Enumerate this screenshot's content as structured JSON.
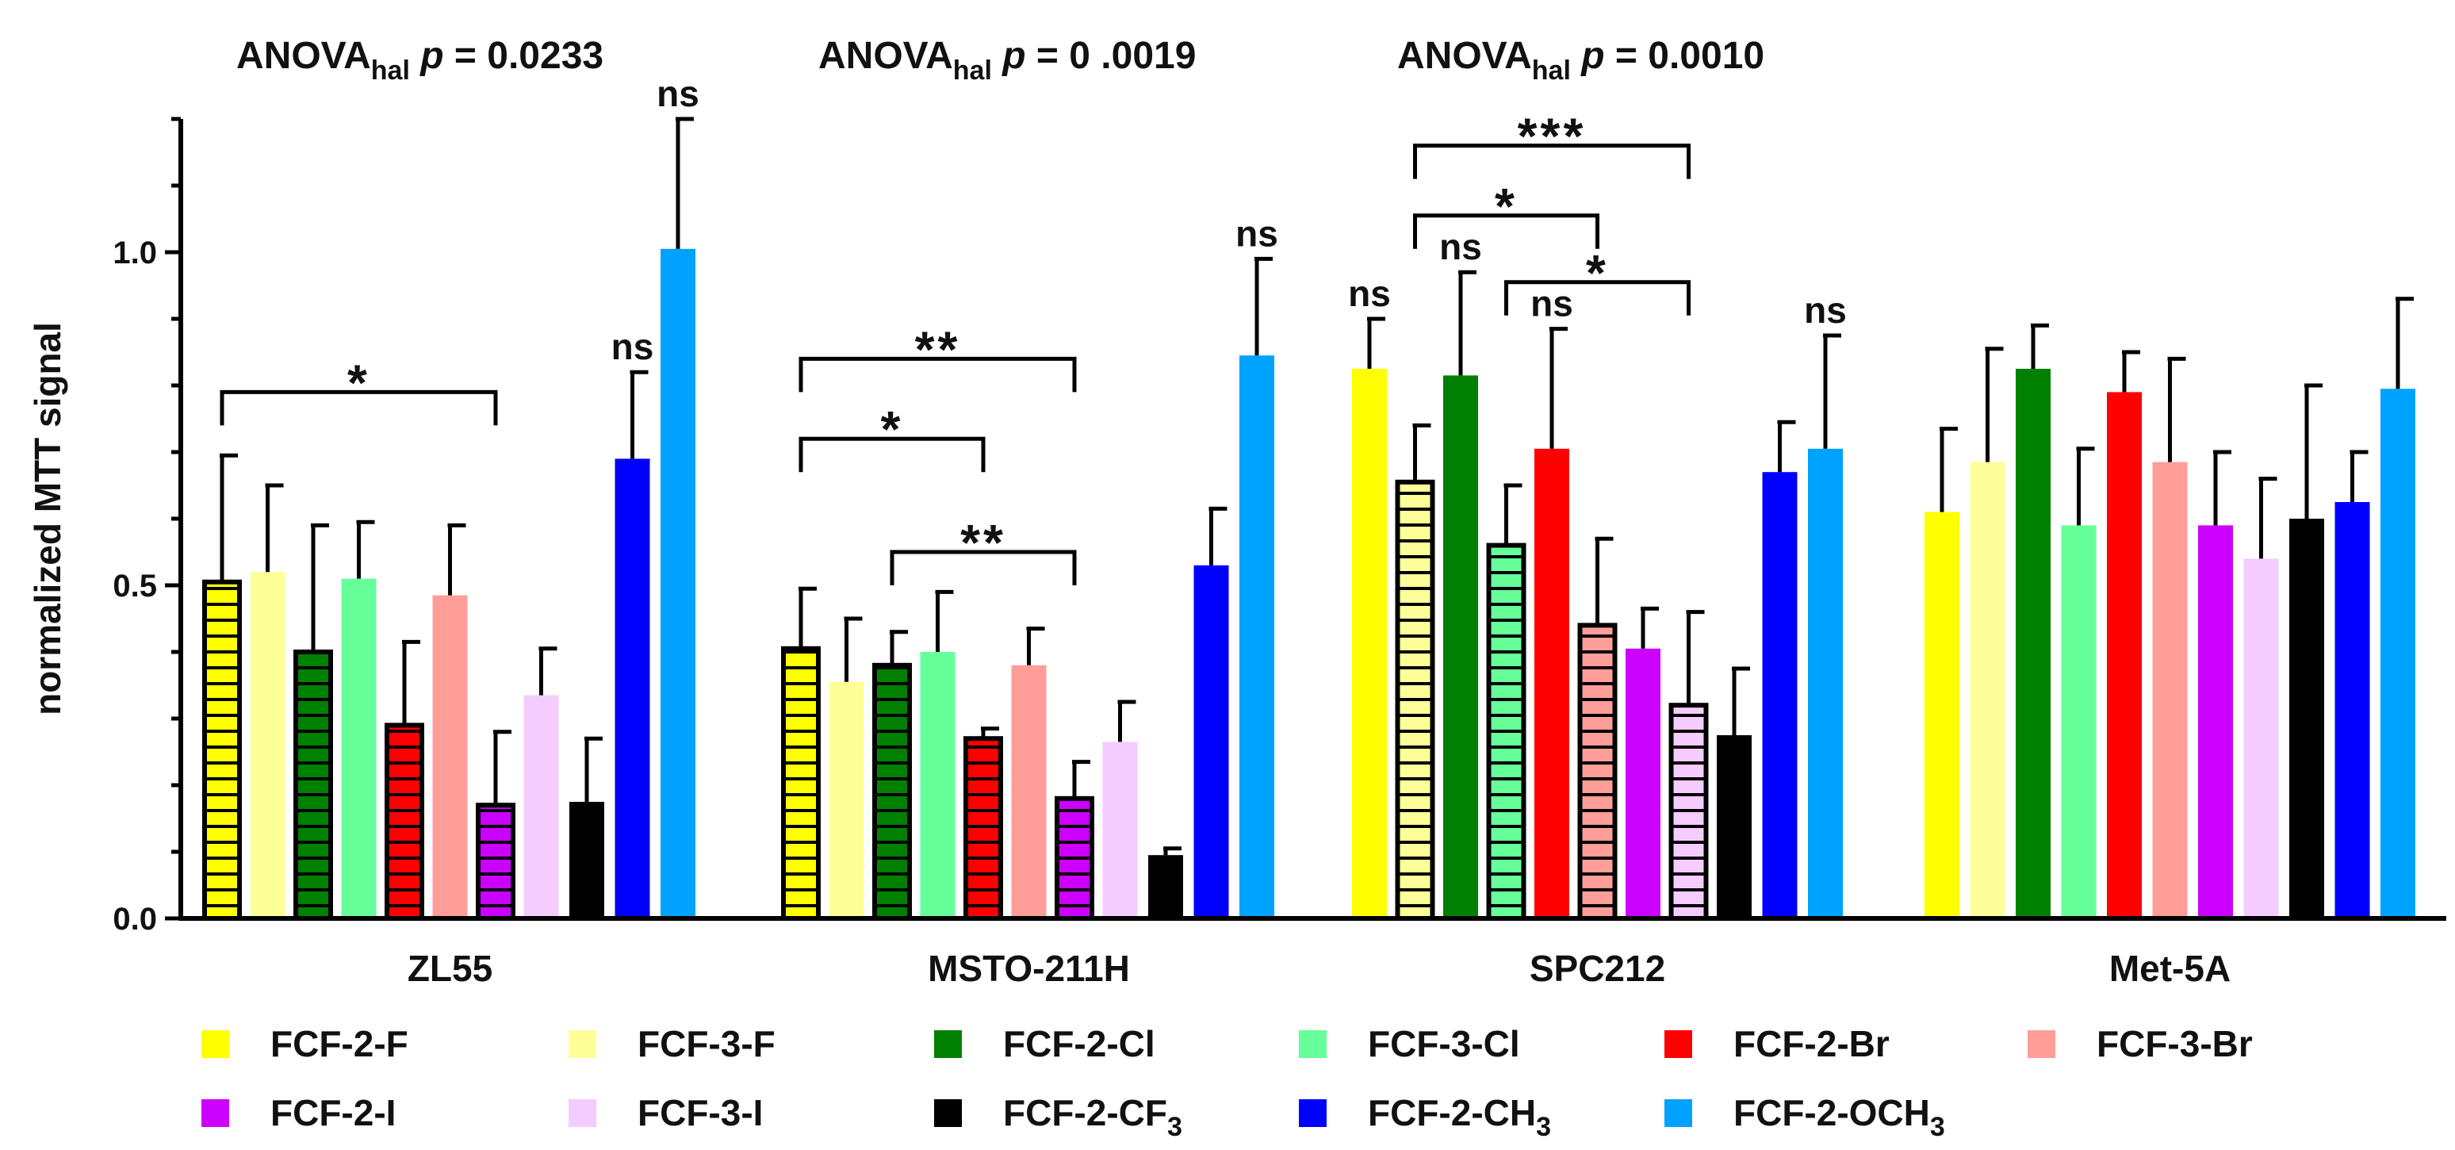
{
  "chart_data": {
    "type": "bar",
    "ylabel": "normalized MTT signal",
    "xlabel": "",
    "ylim": [
      0,
      1.2
    ],
    "yticks": [
      {
        "value": 0.0,
        "label": "0.0"
      },
      {
        "value": 0.5,
        "label": "0.5"
      },
      {
        "value": 1.0,
        "label": "1.0"
      }
    ],
    "grid": false,
    "legend_position": "bottom",
    "categories": [
      "ZL55",
      "MSTO-211H",
      "SPC212",
      "Met-5A"
    ],
    "series": [
      {
        "name": "FCF-2-F",
        "label": "FCF-2-F",
        "sub": "",
        "color": "#ffff00"
      },
      {
        "name": "FCF-3-F",
        "label": "FCF-3-F",
        "sub": "",
        "color": "#ffff99"
      },
      {
        "name": "FCF-2-Cl",
        "label": "FCF-2-Cl",
        "sub": "",
        "color": "#008000"
      },
      {
        "name": "FCF-3-Cl",
        "label": "FCF-3-Cl",
        "sub": "",
        "color": "#66ff99"
      },
      {
        "name": "FCF-2-Br",
        "label": "FCF-2-Br",
        "sub": "",
        "color": "#ff0000"
      },
      {
        "name": "FCF-3-Br",
        "label": "FCF-3-Br",
        "sub": "",
        "color": "#ff9e99"
      },
      {
        "name": "FCF-2-I",
        "label": "FCF-2-I",
        "sub": "",
        "color": "#cc00ff"
      },
      {
        "name": "FCF-3-I",
        "label": "FCF-3-I",
        "sub": "",
        "color": "#f5ccff"
      },
      {
        "name": "FCF-2-CF3",
        "label": "FCF-2-CF",
        "sub": "3",
        "color": "#000000"
      },
      {
        "name": "FCF-2-CH3",
        "label": "FCF-2-CH",
        "sub": "3",
        "color": "#0000ff"
      },
      {
        "name": "FCF-2-OCH3",
        "label": "FCF-2-OCH",
        "sub": "3",
        "color": "#00a2ff"
      }
    ],
    "groups": [
      {
        "name": "ZL55",
        "values": [
          0.505,
          0.52,
          0.4,
          0.51,
          0.29,
          0.485,
          0.17,
          0.335,
          0.175,
          0.69,
          1.005
        ],
        "errors": [
          0.19,
          0.13,
          0.19,
          0.085,
          0.125,
          0.105,
          0.11,
          0.07,
          0.095,
          0.13,
          0.195
        ],
        "hatched": [
          0,
          2,
          4,
          6
        ]
      },
      {
        "name": "MSTO-211H",
        "values": [
          0.405,
          0.355,
          0.38,
          0.4,
          0.27,
          0.38,
          0.18,
          0.265,
          0.095,
          0.53,
          0.845
        ],
        "errors": [
          0.09,
          0.095,
          0.05,
          0.09,
          0.015,
          0.055,
          0.055,
          0.06,
          0.01,
          0.085,
          0.145
        ],
        "hatched": [
          0,
          2,
          4,
          6
        ]
      },
      {
        "name": "SPC212",
        "values": [
          0.825,
          0.655,
          0.815,
          0.56,
          0.705,
          0.44,
          0.405,
          0.32,
          0.275,
          0.67,
          0.705
        ],
        "errors": [
          0.075,
          0.085,
          0.155,
          0.09,
          0.18,
          0.13,
          0.06,
          0.14,
          0.1,
          0.075,
          0.17
        ],
        "hatched": [
          1,
          3,
          5,
          7
        ]
      },
      {
        "name": "Met-5A",
        "values": [
          0.61,
          0.685,
          0.825,
          0.59,
          0.79,
          0.685,
          0.59,
          0.54,
          0.6,
          0.625,
          0.795
        ],
        "errors": [
          0.125,
          0.17,
          0.065,
          0.115,
          0.06,
          0.155,
          0.11,
          0.12,
          0.2,
          0.075,
          0.135
        ],
        "hatched": []
      }
    ],
    "anova": [
      {
        "prefix": "ANOVA",
        "sub": "hal",
        "stat": "p = 0.0233"
      },
      {
        "prefix": "ANOVA",
        "sub": "hal",
        "stat": "p = 0 .0019"
      },
      {
        "prefix": "ANOVA",
        "sub": "hal",
        "stat": "p = 0.0010"
      }
    ],
    "ns_labels": [
      {
        "group": 0,
        "series": 9,
        "text": "ns"
      },
      {
        "group": 0,
        "series": 10,
        "text": "ns"
      },
      {
        "group": 1,
        "series": 10,
        "text": "ns"
      },
      {
        "group": 2,
        "series": 0,
        "text": "ns"
      },
      {
        "group": 2,
        "series": 2,
        "text": "ns"
      },
      {
        "group": 2,
        "series": 4,
        "text": "ns"
      },
      {
        "group": 2,
        "series": 10,
        "text": "ns"
      }
    ],
    "significance_brackets": [
      {
        "group": 0,
        "from": 0,
        "to": 6,
        "level": 0.79,
        "text": "*"
      },
      {
        "group": 1,
        "from": 0,
        "to": 4,
        "level": 0.72,
        "text": "*"
      },
      {
        "group": 1,
        "from": 0,
        "to": 6,
        "level": 0.84,
        "text": "**"
      },
      {
        "group": 1,
        "from": 2,
        "to": 6,
        "level": 0.55,
        "text": "**"
      },
      {
        "group": 2,
        "from": 1,
        "to": 5,
        "level": 1.055,
        "text": "*"
      },
      {
        "group": 2,
        "from": 1,
        "to": 7,
        "level": 1.16,
        "text": "***"
      },
      {
        "group": 2,
        "from": 3,
        "to": 7,
        "level": 0.955,
        "text": "*"
      }
    ]
  }
}
